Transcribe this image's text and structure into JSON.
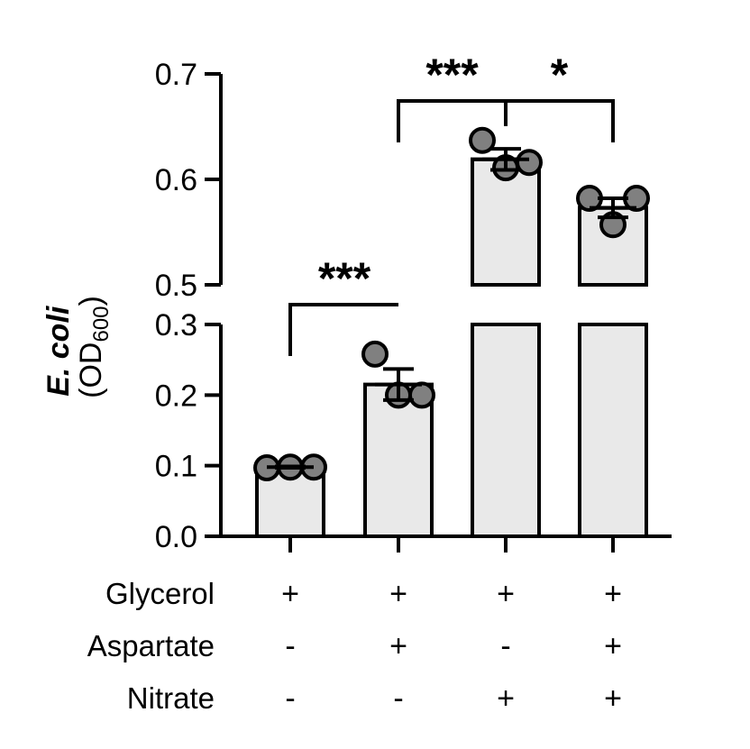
{
  "chart_data": {
    "type": "bar",
    "ylabel_main": "E. coli",
    "ylabel_unit": "(OD",
    "ylabel_sub": "600",
    "ylabel_close": ")",
    "y_lower_range": [
      0,
      0.3
    ],
    "y_upper_range": [
      0.5,
      0.7
    ],
    "y_ticks_lower": [
      "0.0",
      "0.1",
      "0.2",
      "0.3"
    ],
    "y_ticks_upper": [
      "0.5",
      "0.6",
      "0.7"
    ],
    "y_ticks_lower_values": [
      0,
      0.1,
      0.2,
      0.3
    ],
    "y_ticks_upper_values": [
      0.5,
      0.6,
      0.7
    ],
    "groups": [
      {
        "mean": 0.098,
        "sem": 0.001,
        "points": [
          0.097,
          0.098,
          0.098
        ]
      },
      {
        "mean": 0.215,
        "sem": 0.022,
        "points": [
          0.258,
          0.2,
          0.2
        ]
      },
      {
        "mean": 0.619,
        "sem": 0.01,
        "points": [
          0.637,
          0.611,
          0.616
        ]
      },
      {
        "mean": 0.573,
        "sem": 0.009,
        "points": [
          0.582,
          0.557,
          0.582
        ]
      }
    ],
    "conditions": [
      {
        "name": "Glycerol",
        "values": [
          "+",
          "+",
          "+",
          "+"
        ]
      },
      {
        "name": "Aspartate",
        "values": [
          "-",
          "+",
          "-",
          "+"
        ]
      },
      {
        "name": "Nitrate",
        "values": [
          "-",
          "-",
          "+",
          "+"
        ]
      }
    ],
    "significance": [
      {
        "from": 0,
        "to": 1,
        "label": "***"
      },
      {
        "from": 1,
        "to": 2,
        "label": "***"
      },
      {
        "from": 2,
        "to": 3,
        "label": "*"
      }
    ]
  }
}
